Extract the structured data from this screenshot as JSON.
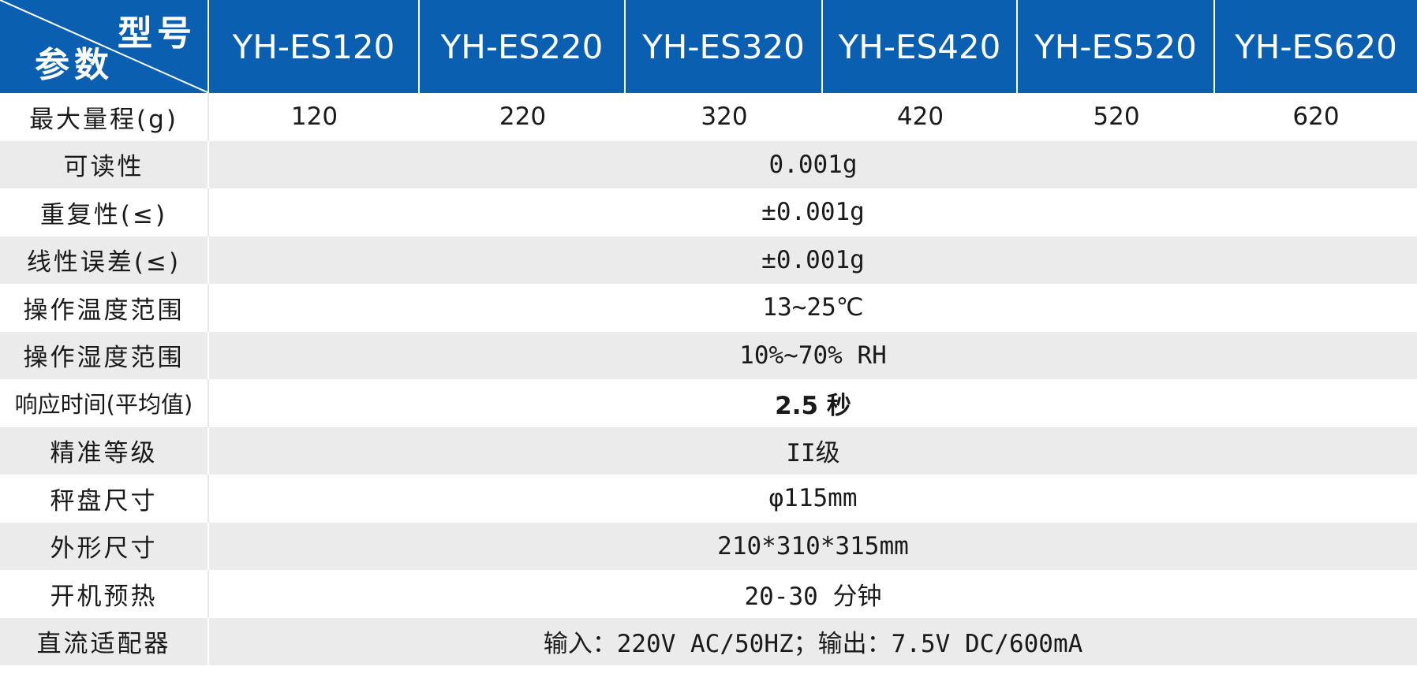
{
  "header": {
    "corner_top": "型号",
    "corner_bottom": "参数",
    "models": [
      "YH-ES120",
      "YH-ES220",
      "YH-ES320",
      "YH-ES420",
      "YH-ES520",
      "YH-ES620"
    ]
  },
  "capacity_row": {
    "label": "最大量程(g)",
    "values": [
      "120",
      "220",
      "320",
      "420",
      "520",
      "620"
    ]
  },
  "rows": [
    {
      "label": "可读性",
      "value": "0.001g"
    },
    {
      "label": "重复性(≤)",
      "value": "±0.001g"
    },
    {
      "label": "线性误差(≤)",
      "value": "±0.001g"
    },
    {
      "label": "操作温度范围",
      "value": "13~25℃"
    },
    {
      "label": "操作湿度范围",
      "value": "10%~70% RH"
    },
    {
      "label": "响应时间(平均值)",
      "value": "2.5 秒"
    },
    {
      "label": "精准等级",
      "value": "II级"
    },
    {
      "label": "秤盘尺寸",
      "value": "φ115mm"
    },
    {
      "label": "外形尺寸",
      "value": "210*310*315mm"
    },
    {
      "label": "开机预热",
      "value": "20-30 分钟"
    },
    {
      "label": "直流适配器",
      "value": "输入：220V AC/50HZ；输出：7.5V DC/600mA"
    }
  ],
  "colors": {
    "header_bg": "#0a5fb0",
    "alt_row_bg": "#ebebeb"
  }
}
